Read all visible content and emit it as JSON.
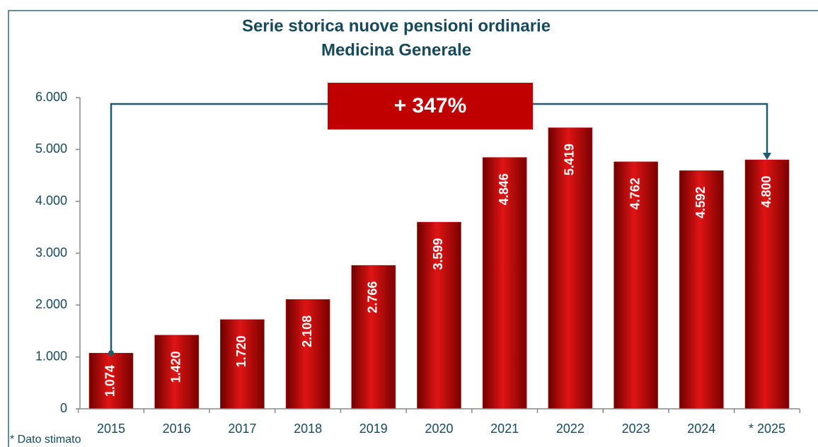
{
  "chart_data": {
    "type": "bar",
    "title": "Serie storica nuove pensioni ordinarie",
    "subtitle": "Medicina Generale",
    "categories": [
      "2015",
      "2016",
      "2017",
      "2018",
      "2019",
      "2020",
      "2021",
      "2022",
      "2023",
      "2024",
      "* 2025"
    ],
    "values": [
      1074,
      1420,
      1720,
      2108,
      2766,
      3599,
      4846,
      5419,
      4762,
      4592,
      4800
    ],
    "value_labels": [
      "1.074",
      "1.420",
      "1.720",
      "2.108",
      "2.766",
      "3.599",
      "4.846",
      "5.419",
      "4.762",
      "4.592",
      "4.800"
    ],
    "color": "#c00000",
    "ylim": [
      0,
      6000
    ],
    "yticks": [
      0,
      {
        "value": 1000,
        "label": "1.000"
      },
      {
        "value": 2000,
        "label": "2.000"
      },
      {
        "value": 3000,
        "label": "3.000"
      },
      {
        "value": 4000,
        "label": "4.000"
      },
      {
        "value": 5000,
        "label": "5.000"
      },
      {
        "value": 6000,
        "label": "6.000"
      }
    ],
    "annotation": "+ 347%",
    "footnote": "* Dato stimato"
  }
}
